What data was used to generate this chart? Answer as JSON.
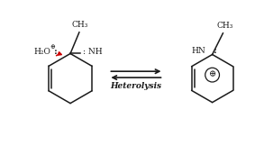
{
  "bg_color": "#ffffff",
  "arrow_label": "Heterolysis",
  "left_molecule": {
    "h2o_label": "H₂O",
    "h2o_charge": "⊕",
    "h2o_dots": ":",
    "nh_label": ": NH",
    "ch3_label": "CH₃",
    "red_arrow_color": "#cc0000"
  },
  "right_molecule": {
    "hn_label": "HN",
    "hn_dots": ":",
    "ch3_label": "CH₃",
    "charge": "⊕"
  },
  "line_color": "#1a1a1a",
  "text_color": "#1a1a1a"
}
